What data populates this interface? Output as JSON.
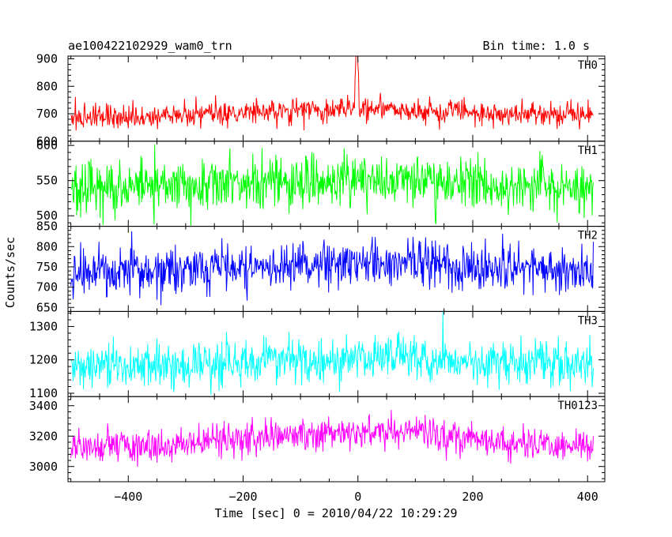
{
  "chart_data": {
    "type": "line",
    "title": "ae100422102929_wam0_trn",
    "bin_time_label": "Bin time: 1.0 s",
    "xlabel": "Time [sec] 0 = 2010/04/22 10:29:29",
    "ylabel": "Counts/sec",
    "xlim": [
      -505,
      430
    ],
    "xticks": [
      -400,
      -200,
      0,
      200,
      400
    ],
    "xtick_labels": [
      "−400",
      "−200",
      "0",
      "200",
      "400"
    ],
    "x_range": [
      -500,
      410
    ],
    "grid": false,
    "panels": [
      {
        "name": "TH0",
        "color": "#ff0000",
        "ylim": [
          600,
          910
        ],
        "yticks": [
          600,
          700,
          800,
          900
        ],
        "mean": 690,
        "sigma": 22,
        "bump": 25,
        "burst": 260
      },
      {
        "name": "TH1",
        "color": "#00ff00",
        "ylim": [
          485,
          606
        ],
        "yticks": [
          500,
          550,
          600
        ],
        "mean": 540,
        "sigma": 18,
        "bump": 12,
        "burst": 0
      },
      {
        "name": "TH2",
        "color": "#0000ff",
        "ylim": [
          640,
          850
        ],
        "yticks": [
          650,
          700,
          750,
          800,
          850
        ],
        "mean": 735,
        "sigma": 28,
        "bump": 25,
        "burst": 0
      },
      {
        "name": "TH3",
        "color": "#00ffff",
        "ylim": [
          1090,
          1345
        ],
        "yticks": [
          1100,
          1200,
          1300
        ],
        "mean": 1180,
        "sigma": 32,
        "bump": 30,
        "burst": 0
      },
      {
        "name": "TH0123",
        "color": "#ff00ff",
        "ylim": [
          2900,
          3460
        ],
        "yticks": [
          3000,
          3200,
          3400
        ],
        "mean": 3120,
        "sigma": 55,
        "bump": 110,
        "burst": 0
      }
    ]
  }
}
